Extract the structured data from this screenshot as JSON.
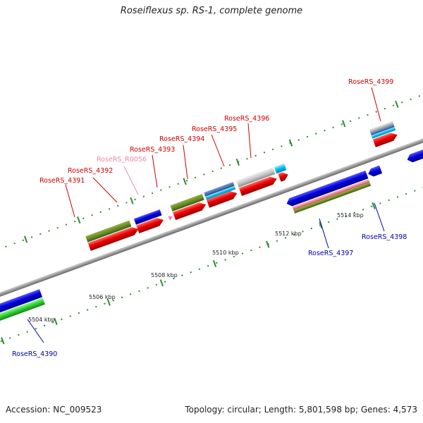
{
  "title": "Roseiflexus sp. RS-1, complete genome",
  "footer": {
    "accession": "Accession: NC_009523",
    "summary": "Topology: circular; Length: 5,801,598 bp; Genes: 4,573"
  },
  "colors": {
    "backbone": "#9a9a9a",
    "dots": "#2e8b2e",
    "forward_label": "#cc0000",
    "reverse_label": "#0000aa",
    "rna_label": "#ee88aa"
  },
  "scale_labels": [
    "5504 kbp",
    "5506 kbp",
    "5508 kbp",
    "5510 kbp",
    "5512 kbp",
    "5514 kbp"
  ],
  "gene_labels": [
    {
      "name": "RoseRS_4390",
      "strand": "reverse"
    },
    {
      "name": "RoseRS_4391",
      "strand": "forward"
    },
    {
      "name": "RoseRS_4392",
      "strand": "forward"
    },
    {
      "name": "RoseRS_R0056",
      "strand": "rna"
    },
    {
      "name": "RoseRS_4393",
      "strand": "forward"
    },
    {
      "name": "RoseRS_4394",
      "strand": "forward"
    },
    {
      "name": "RoseRS_4395",
      "strand": "forward"
    },
    {
      "name": "RoseRS_4396",
      "strand": "forward"
    },
    {
      "name": "RoseRS_4397",
      "strand": "reverse"
    },
    {
      "name": "RoseRS_4398",
      "strand": "reverse"
    },
    {
      "name": "RoseRS_4399",
      "strand": "forward"
    }
  ]
}
